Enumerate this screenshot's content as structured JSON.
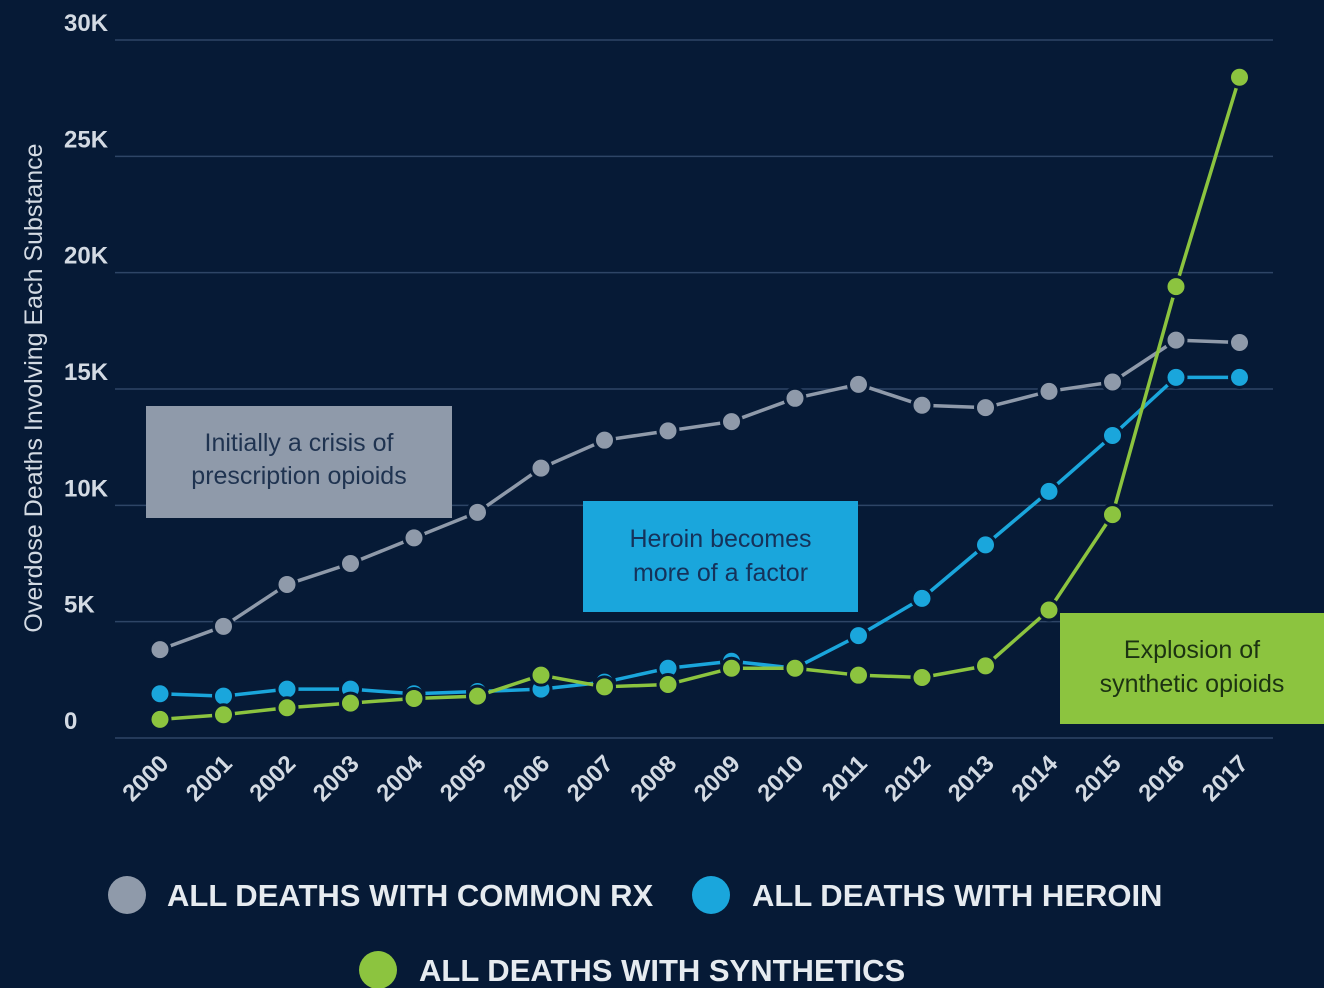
{
  "colors": {
    "background": "#061a36",
    "grid": "#2e4566",
    "rx": "#8f9aaa",
    "heroin": "#1aa6dc",
    "synthetics": "#8cc43f"
  },
  "chart_data": {
    "type": "line",
    "ylabel": "Overdose Deaths Involving Each Substance",
    "xlabel": "",
    "ylim": [
      0,
      30000
    ],
    "yticks": [
      0,
      5000,
      10000,
      15000,
      20000,
      25000,
      30000
    ],
    "ytick_labels": [
      "0",
      "5K",
      "10K",
      "15K",
      "20K",
      "25K",
      "30K"
    ],
    "grid": true,
    "legend_placement": "bottom",
    "x": [
      "2000",
      "2001",
      "2002",
      "2003",
      "2004",
      "2005",
      "2006",
      "2007",
      "2008",
      "2009",
      "2010",
      "2011",
      "2012",
      "2013",
      "2014",
      "2015",
      "2016",
      "2017"
    ],
    "series": [
      {
        "name": "ALL DEATHS WITH COMMON RX",
        "color": "#8f9aaa",
        "values": [
          3800,
          4800,
          6600,
          7500,
          8600,
          9700,
          11600,
          12800,
          13200,
          13600,
          14600,
          15200,
          14300,
          14200,
          14900,
          15300,
          17100,
          17000
        ]
      },
      {
        "name": "ALL DEATHS WITH HEROIN",
        "color": "#1aa6dc",
        "values": [
          1900,
          1800,
          2100,
          2100,
          1900,
          2000,
          2100,
          2400,
          3000,
          3300,
          3000,
          4400,
          6000,
          8300,
          10600,
          13000,
          15500,
          15500
        ]
      },
      {
        "name": "ALL DEATHS WITH SYNTHETICS",
        "color": "#8cc43f",
        "values": [
          800,
          1000,
          1300,
          1500,
          1700,
          1800,
          2700,
          2200,
          2300,
          3000,
          3000,
          2700,
          2600,
          3100,
          5500,
          9600,
          19400,
          28400
        ]
      }
    ],
    "annotations": [
      {
        "lines": [
          "Initially a crisis of",
          "prescription opioids"
        ],
        "bg": "#8f9aaa",
        "fg": "#1f3350"
      },
      {
        "lines": [
          "Heroin becomes",
          "more of a factor"
        ],
        "bg": "#1aa6dc",
        "fg": "#15325a"
      },
      {
        "lines": [
          "Explosion of",
          "synthetic opioids"
        ],
        "bg": "#8cc43f",
        "fg": "#1c3312"
      }
    ]
  }
}
